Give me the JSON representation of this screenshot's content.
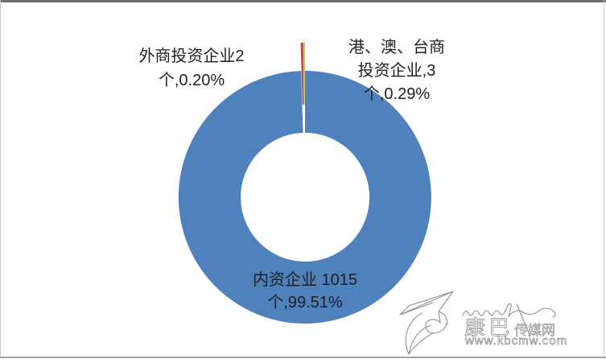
{
  "chart_data": {
    "type": "pie",
    "subtype": "donut",
    "title": "",
    "slices": [
      {
        "name": "内资企业",
        "value": 1015,
        "pct": "99.51%",
        "color": "#4F81BD",
        "exploded": false,
        "data_label_lines": [
          "内资企业 1015",
          "个,99.51%"
        ]
      },
      {
        "name": "外商投资企业",
        "value": 2,
        "pct": "0.20%",
        "color": "#C0504D",
        "exploded": true,
        "data_label_lines": [
          "外商投资企业2",
          "个,0.20%"
        ]
      },
      {
        "name": "港、澳、台商投资企业",
        "value": 3,
        "pct": "0.29%",
        "color": "#9BBB59",
        "exploded": true,
        "data_label_lines": [
          "港、澳、台商",
          "投资企业,3",
          "个,0.29%"
        ]
      }
    ],
    "legend": "none",
    "background": "#ffffff"
  },
  "watermark": {
    "site_name_big": "康巴",
    "site_name_small": "传媒网",
    "site_url": "www.kbcmw.com"
  }
}
